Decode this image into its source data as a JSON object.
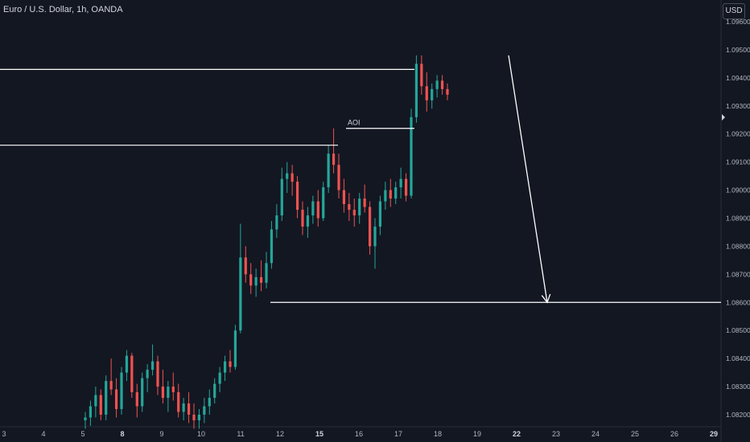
{
  "header": {
    "title": "Euro / U.S. Dollar, 1h, OANDA",
    "currency": "USD"
  },
  "colors": {
    "background": "#131722",
    "up": "#26a69a",
    "down": "#ef5350",
    "drawing": "#ffffff"
  },
  "chart_data": {
    "type": "candlestick",
    "title": "Euro / U.S. Dollar, 1h, OANDA",
    "ylim": [
      1.0815,
      1.0965
    ],
    "yticks": [
      1.096,
      1.095,
      1.094,
      1.093,
      1.092,
      1.091,
      1.09,
      1.089,
      1.088,
      1.087,
      1.086,
      1.085,
      1.084,
      1.083,
      1.082
    ],
    "ytick_labels": [
      "1.09600",
      "1.09500",
      "1.09400",
      "1.09300",
      "1.09200",
      "1.09100",
      "1.09000",
      "1.08900",
      "1.08800",
      "1.08700",
      "1.08600",
      "1.08500",
      "1.08400",
      "1.08300",
      "1.08200"
    ],
    "xticks": [
      {
        "label": "3",
        "bold": false
      },
      {
        "label": "4",
        "bold": false
      },
      {
        "label": "5",
        "bold": false
      },
      {
        "label": "8",
        "bold": true
      },
      {
        "label": "9",
        "bold": false
      },
      {
        "label": "10",
        "bold": false
      },
      {
        "label": "11",
        "bold": false
      },
      {
        "label": "12",
        "bold": false
      },
      {
        "label": "15",
        "bold": true
      },
      {
        "label": "16",
        "bold": false
      },
      {
        "label": "17",
        "bold": false
      },
      {
        "label": "18",
        "bold": false
      },
      {
        "label": "19",
        "bold": false
      },
      {
        "label": "22",
        "bold": true
      },
      {
        "label": "23",
        "bold": false
      },
      {
        "label": "24",
        "bold": false
      },
      {
        "label": "25",
        "bold": false
      },
      {
        "label": "26",
        "bold": false
      },
      {
        "label": "29",
        "bold": true
      }
    ],
    "candles": [
      [
        1.0818,
        1.0821,
        1.0815,
        1.0819
      ],
      [
        1.0819,
        1.0825,
        1.0816,
        1.0823
      ],
      [
        1.0823,
        1.083,
        1.0819,
        1.0827
      ],
      [
        1.0827,
        1.0829,
        1.0818,
        1.082
      ],
      [
        1.082,
        1.0834,
        1.0818,
        1.0832
      ],
      [
        1.0832,
        1.084,
        1.0827,
        1.0829
      ],
      [
        1.0829,
        1.0833,
        1.0819,
        1.0822
      ],
      [
        1.0822,
        1.0837,
        1.082,
        1.0835
      ],
      [
        1.0835,
        1.0843,
        1.0832,
        1.0841
      ],
      [
        1.0841,
        1.0842,
        1.0826,
        1.0828
      ],
      [
        1.0828,
        1.0831,
        1.0819,
        1.0823
      ],
      [
        1.0823,
        1.0835,
        1.0821,
        1.0833
      ],
      [
        1.0833,
        1.0838,
        1.0828,
        1.0836
      ],
      [
        1.0836,
        1.0845,
        1.0834,
        1.0839
      ],
      [
        1.0839,
        1.0841,
        1.0827,
        1.083
      ],
      [
        1.083,
        1.0836,
        1.0824,
        1.0826
      ],
      [
        1.0826,
        1.0832,
        1.0821,
        1.083
      ],
      [
        1.083,
        1.0835,
        1.0825,
        1.0828
      ],
      [
        1.0828,
        1.0831,
        1.0819,
        1.0821
      ],
      [
        1.0821,
        1.0826,
        1.0818,
        1.0824
      ],
      [
        1.0824,
        1.0828,
        1.0817,
        1.082
      ],
      [
        1.082,
        1.0824,
        1.0815,
        1.0818
      ],
      [
        1.0818,
        1.0822,
        1.0815,
        1.082
      ],
      [
        1.082,
        1.0826,
        1.0817,
        1.0823
      ],
      [
        1.0823,
        1.0829,
        1.082,
        1.0826
      ],
      [
        1.0826,
        1.0833,
        1.0824,
        1.0831
      ],
      [
        1.0831,
        1.0837,
        1.0828,
        1.0835
      ],
      [
        1.0835,
        1.0841,
        1.0832,
        1.0839
      ],
      [
        1.0839,
        1.0843,
        1.0835,
        1.0837
      ],
      [
        1.0837,
        1.0852,
        1.0836,
        1.085
      ],
      [
        1.085,
        1.0888,
        1.0849,
        1.0876
      ],
      [
        1.0876,
        1.088,
        1.0867,
        1.087
      ],
      [
        1.087,
        1.0874,
        1.0863,
        1.0866
      ],
      [
        1.0866,
        1.0872,
        1.0862,
        1.0869
      ],
      [
        1.0869,
        1.0875,
        1.0864,
        1.0867
      ],
      [
        1.0867,
        1.0878,
        1.0865,
        1.0874
      ],
      [
        1.0874,
        1.0889,
        1.0872,
        1.0886
      ],
      [
        1.0886,
        1.0895,
        1.0883,
        1.0891
      ],
      [
        1.0891,
        1.0908,
        1.0889,
        1.0904
      ],
      [
        1.0904,
        1.091,
        1.0899,
        1.0906
      ],
      [
        1.0906,
        1.0909,
        1.0898,
        1.0903
      ],
      [
        1.0903,
        1.0905,
        1.089,
        1.0893
      ],
      [
        1.0893,
        1.0896,
        1.0884,
        1.0887
      ],
      [
        1.0887,
        1.0894,
        1.0883,
        1.0891
      ],
      [
        1.0891,
        1.0898,
        1.0888,
        1.0896
      ],
      [
        1.0896,
        1.09,
        1.0887,
        1.089
      ],
      [
        1.089,
        1.0903,
        1.0889,
        1.0901
      ],
      [
        1.0901,
        1.0916,
        1.0899,
        1.0913
      ],
      [
        1.0913,
        1.0922,
        1.0906,
        1.0909
      ],
      [
        1.0909,
        1.0913,
        1.0897,
        1.09
      ],
      [
        1.09,
        1.0904,
        1.0892,
        1.0895
      ],
      [
        1.0895,
        1.0899,
        1.0889,
        1.0893
      ],
      [
        1.0893,
        1.0897,
        1.0887,
        1.0891
      ],
      [
        1.0891,
        1.0899,
        1.0888,
        1.0897
      ],
      [
        1.0897,
        1.0902,
        1.0892,
        1.0894
      ],
      [
        1.0894,
        1.0896,
        1.0877,
        1.088
      ],
      [
        1.088,
        1.089,
        1.0872,
        1.0887
      ],
      [
        1.0887,
        1.0898,
        1.0884,
        1.0896
      ],
      [
        1.0896,
        1.0903,
        1.0893,
        1.09
      ],
      [
        1.09,
        1.0904,
        1.0894,
        1.0897
      ],
      [
        1.0897,
        1.0903,
        1.0895,
        1.0901
      ],
      [
        1.0901,
        1.0908,
        1.0897,
        1.0904
      ],
      [
        1.0904,
        1.0906,
        1.0896,
        1.0898
      ],
      [
        1.0898,
        1.0929,
        1.0897,
        1.0926
      ],
      [
        1.0926,
        1.0948,
        1.0924,
        1.0945
      ],
      [
        1.0945,
        1.0948,
        1.0934,
        1.0937
      ],
      [
        1.0937,
        1.0942,
        1.0928,
        1.0932
      ],
      [
        1.0932,
        1.0938,
        1.0929,
        1.0936
      ],
      [
        1.0936,
        1.0941,
        1.0933,
        1.0939
      ],
      [
        1.0939,
        1.0941,
        1.0934,
        1.0936
      ],
      [
        1.0936,
        1.0938,
        1.0932,
        1.0934
      ]
    ],
    "horizontal_lines": [
      {
        "price": 1.0943,
        "from_x": 0,
        "to_x": 515
      },
      {
        "price": 1.0916,
        "from_x": 0,
        "to_x": 420
      },
      {
        "price": 1.086,
        "from_x": 336,
        "to_x": 896
      }
    ],
    "aoi_label": "AOI",
    "aoi_line": {
      "price": 1.0922,
      "from_x": 430,
      "to_x": 515
    },
    "arrow": {
      "from": {
        "x": 632,
        "price": 1.0948
      },
      "to": {
        "x": 680,
        "price": 1.086
      }
    }
  }
}
